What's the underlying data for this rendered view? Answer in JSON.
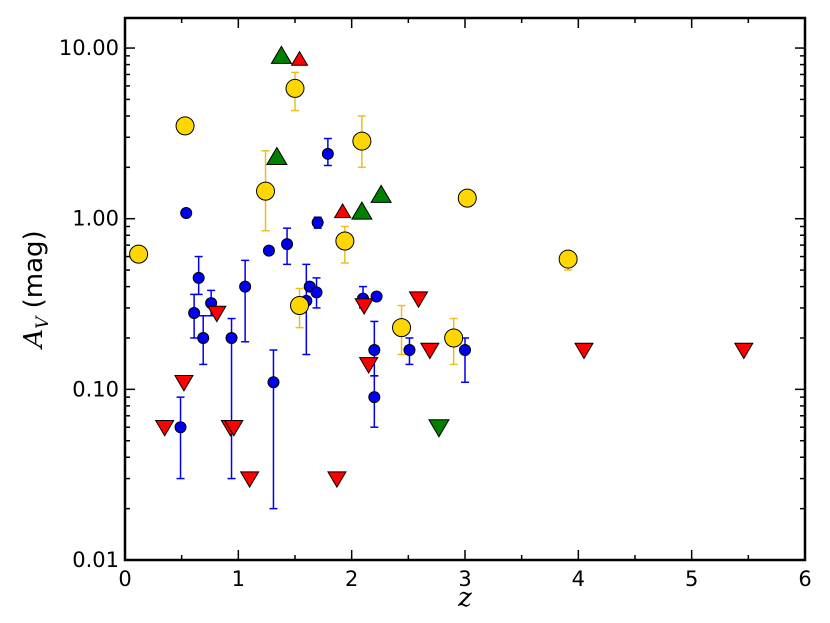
{
  "chart_data": {
    "type": "scatter",
    "xlabel_var": "z",
    "ylabel_var": "A",
    "ylabel_sub": "V",
    "ylabel_unit": " (mag)",
    "xlim": [
      0,
      6
    ],
    "ylim": [
      0.01,
      15
    ],
    "yscale": "log",
    "grid": false,
    "x_ticks": [
      0,
      1,
      2,
      3,
      4,
      5,
      6
    ],
    "x_tick_labels": [
      "0",
      "1",
      "2",
      "3",
      "4",
      "5",
      "6"
    ],
    "y_ticks": [
      0.01,
      0.1,
      1,
      10
    ],
    "y_tick_labels": [
      "0.01",
      "0.10",
      "1.00",
      "10.00"
    ],
    "colors": {
      "blue": "#0000ee",
      "yellow": "#ffd700",
      "yellow_err": "#e8c020",
      "red": "#ff0000",
      "green": "#008000"
    },
    "series": [
      {
        "marker": "blue-circle",
        "points": [
          {
            "x": 0.49,
            "y": 0.06,
            "lo": 0.03,
            "hi": 0.09
          },
          {
            "x": 0.54,
            "y": 1.08
          },
          {
            "x": 0.61,
            "y": 0.28,
            "lo": 0.2,
            "hi": 0.36
          },
          {
            "x": 0.65,
            "y": 0.45,
            "lo": 0.36,
            "hi": 0.6
          },
          {
            "x": 0.69,
            "y": 0.2,
            "lo": 0.14,
            "hi": 0.27
          },
          {
            "x": 0.76,
            "y": 0.32,
            "lo": 0.27,
            "hi": 0.38
          },
          {
            "x": 0.94,
            "y": 0.2,
            "lo": 0.03,
            "hi": 0.26
          },
          {
            "x": 1.06,
            "y": 0.4,
            "lo": 0.19,
            "hi": 0.57
          },
          {
            "x": 1.27,
            "y": 0.65
          },
          {
            "x": 1.31,
            "y": 0.11,
            "lo": 0.02,
            "hi": 0.17
          },
          {
            "x": 1.43,
            "y": 0.71,
            "lo": 0.54,
            "hi": 0.88
          },
          {
            "x": 1.6,
            "y": 0.33,
            "lo": 0.16,
            "hi": 0.54
          },
          {
            "x": 1.63,
            "y": 0.4
          },
          {
            "x": 1.69,
            "y": 0.37,
            "lo": 0.3,
            "hi": 0.45
          },
          {
            "x": 1.7,
            "y": 0.95,
            "lo": 0.88,
            "hi": 1.02
          },
          {
            "x": 1.79,
            "y": 2.4,
            "lo": 2.05,
            "hi": 2.95
          },
          {
            "x": 2.1,
            "y": 0.34,
            "lo": 0.3,
            "hi": 0.4
          },
          {
            "x": 2.2,
            "y": 0.09,
            "lo": 0.06,
            "hi": 0.12
          },
          {
            "x": 2.2,
            "y": 0.17,
            "lo": 0.12,
            "hi": 0.25
          },
          {
            "x": 2.22,
            "y": 0.35
          },
          {
            "x": 2.51,
            "y": 0.17,
            "lo": 0.14,
            "hi": 0.2
          },
          {
            "x": 3.0,
            "y": 0.17,
            "lo": 0.11,
            "hi": 0.2
          }
        ]
      },
      {
        "marker": "yellow-circle",
        "points": [
          {
            "x": 0.12,
            "y": 0.62
          },
          {
            "x": 0.53,
            "y": 3.5
          },
          {
            "x": 1.24,
            "y": 1.45,
            "lo": 0.85,
            "hi": 2.5
          },
          {
            "x": 1.5,
            "y": 5.8,
            "lo": 4.3,
            "hi": 7.2
          },
          {
            "x": 1.54,
            "y": 0.31,
            "lo": 0.23,
            "hi": 0.39
          },
          {
            "x": 1.94,
            "y": 0.74,
            "lo": 0.55,
            "hi": 0.9
          },
          {
            "x": 2.09,
            "y": 2.85,
            "lo": 2.0,
            "hi": 4.0
          },
          {
            "x": 2.44,
            "y": 0.23,
            "lo": 0.16,
            "hi": 0.31
          },
          {
            "x": 2.9,
            "y": 0.2,
            "lo": 0.14,
            "hi": 0.26
          },
          {
            "x": 3.02,
            "y": 1.32
          },
          {
            "x": 3.91,
            "y": 0.58,
            "lo": 0.5,
            "hi": 0.65
          }
        ]
      },
      {
        "marker": "red-triangle-down",
        "points": [
          {
            "x": 0.35,
            "y": 0.06
          },
          {
            "x": 0.52,
            "y": 0.11
          },
          {
            "x": 0.81,
            "y": 0.28
          },
          {
            "x": 0.93,
            "y": 0.06
          },
          {
            "x": 0.96,
            "y": 0.06
          },
          {
            "x": 1.1,
            "y": 0.03
          },
          {
            "x": 1.87,
            "y": 0.03
          },
          {
            "x": 2.11,
            "y": 0.31
          },
          {
            "x": 2.15,
            "y": 0.14
          },
          {
            "x": 2.59,
            "y": 0.34
          },
          {
            "x": 2.69,
            "y": 0.17
          },
          {
            "x": 4.05,
            "y": 0.17
          },
          {
            "x": 5.46,
            "y": 0.17
          }
        ]
      },
      {
        "marker": "red-triangle-up",
        "points": [
          {
            "x": 1.54,
            "y": 8.6
          },
          {
            "x": 1.92,
            "y": 1.1
          }
        ]
      },
      {
        "marker": "green-triangle-up",
        "points": [
          {
            "x": 1.38,
            "y": 9.0
          },
          {
            "x": 1.34,
            "y": 2.3
          },
          {
            "x": 2.09,
            "y": 1.1
          },
          {
            "x": 2.26,
            "y": 1.38
          }
        ]
      },
      {
        "marker": "green-triangle-down",
        "points": [
          {
            "x": 2.77,
            "y": 0.06
          }
        ]
      }
    ]
  }
}
